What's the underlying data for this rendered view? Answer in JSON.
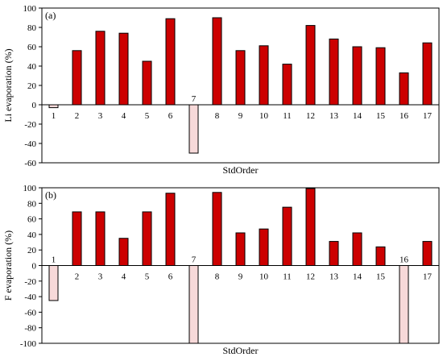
{
  "colors": {
    "positive": "#cc0000",
    "negative": "#f7d9d9",
    "stroke": "#000000"
  },
  "chart_data": [
    {
      "type": "bar",
      "panel_label": "(a)",
      "title": "",
      "xlabel": "StdOrder",
      "ylabel": "Li evaporation (%)",
      "ylim": [
        -60,
        100
      ],
      "yticks": [
        -60,
        -40,
        -20,
        0,
        20,
        40,
        60,
        80,
        100
      ],
      "categories": [
        "1",
        "2",
        "3",
        "4",
        "5",
        "6",
        "7",
        "8",
        "9",
        "10",
        "11",
        "12",
        "13",
        "14",
        "15",
        "16",
        "17"
      ],
      "values": [
        -3,
        56,
        76,
        74,
        45,
        89,
        -50,
        90,
        56,
        61,
        42,
        82,
        68,
        60,
        59,
        33,
        64
      ]
    },
    {
      "type": "bar",
      "panel_label": "(b)",
      "title": "",
      "xlabel": "StdOrder",
      "ylabel": "F evaporation (%)",
      "ylim": [
        -100,
        100
      ],
      "yticks": [
        -100,
        -80,
        -60,
        -40,
        -20,
        0,
        20,
        40,
        60,
        80,
        100
      ],
      "categories": [
        "1",
        "2",
        "3",
        "4",
        "5",
        "6",
        "7",
        "8",
        "9",
        "10",
        "11",
        "12",
        "13",
        "14",
        "15",
        "16",
        "17"
      ],
      "values": [
        -45,
        69,
        69,
        35,
        69,
        93,
        -100,
        94,
        42,
        47,
        75,
        99,
        31,
        42,
        24,
        -100,
        31
      ]
    }
  ]
}
